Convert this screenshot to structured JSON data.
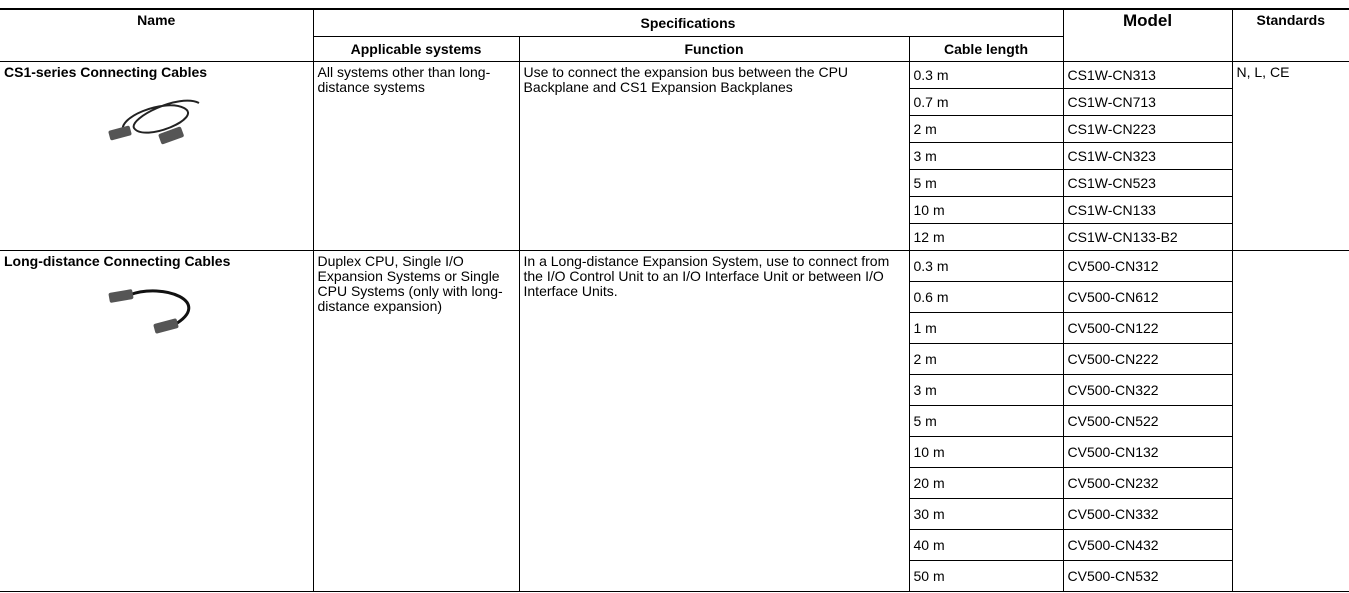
{
  "header": {
    "name": "Name",
    "specifications": "Specifications",
    "model": "Model",
    "standards": "Standards",
    "applicable_systems": "Applicable systems",
    "function": "Function",
    "cable_length": "Cable length"
  },
  "groups": [
    {
      "name": "CS1-series Connecting Cables",
      "systems": "All systems other than long-distance systems",
      "function": "Use to connect the expansion bus between the CPU Backplane and CS1 Expansion Backplanes",
      "standards": "N, L, CE",
      "items": [
        {
          "length": "0.3 m",
          "model": "CS1W-CN313"
        },
        {
          "length": "0.7 m",
          "model": "CS1W-CN713"
        },
        {
          "length": "2 m",
          "model": "CS1W-CN223"
        },
        {
          "length": "3 m",
          "model": "CS1W-CN323"
        },
        {
          "length": "5 m",
          "model": "CS1W-CN523"
        },
        {
          "length": "10 m",
          "model": "CS1W-CN133"
        },
        {
          "length": "12 m",
          "model": "CS1W-CN133-B2"
        }
      ]
    },
    {
      "name": "Long-distance Connecting Cables",
      "systems": "Duplex CPU, Single I/O Expansion Systems or Single CPU Systems (only with long-distance expansion)",
      "function": "In a Long-distance Expansion System, use to connect from the I/O Control Unit to an I/O Interface Unit or between I/O Interface Units.",
      "items": [
        {
          "length": "0.3 m",
          "model": "CV500-CN312"
        },
        {
          "length": "0.6 m",
          "model": "CV500-CN612"
        },
        {
          "length": "1 m",
          "model": "CV500-CN122"
        },
        {
          "length": "2 m",
          "model": "CV500-CN222"
        },
        {
          "length": "3 m",
          "model": "CV500-CN322"
        },
        {
          "length": "5 m",
          "model": "CV500-CN522"
        },
        {
          "length": "10 m",
          "model": "CV500-CN132"
        },
        {
          "length": "20 m",
          "model": "CV500-CN232"
        },
        {
          "length": "30 m",
          "model": "CV500-CN332"
        },
        {
          "length": "40 m",
          "model": "CV500-CN432"
        },
        {
          "length": "50 m",
          "model": "CV500-CN532"
        }
      ]
    }
  ]
}
